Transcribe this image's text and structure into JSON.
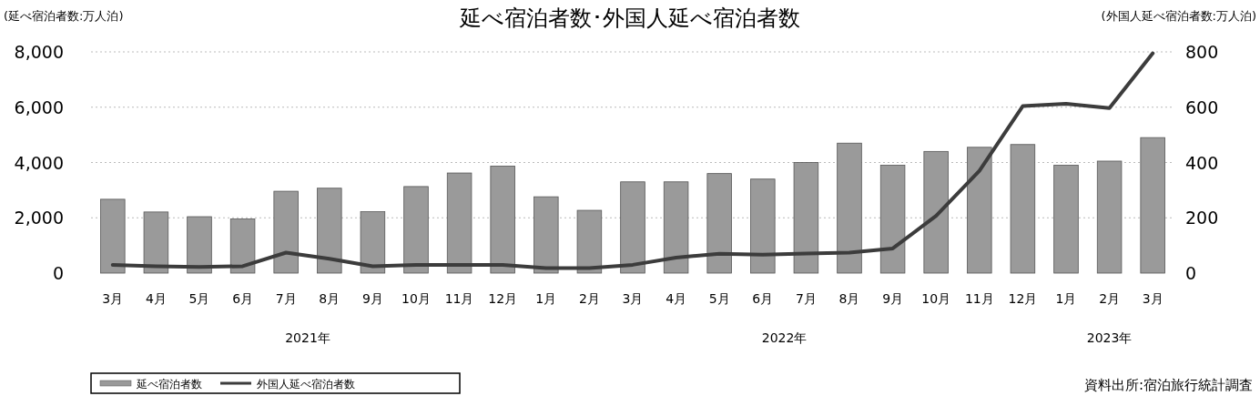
{
  "chart_data": {
    "type": "bar",
    "title": "延べ宿泊者数･外国人延べ宿泊者数",
    "ylabel": "(延べ宿泊者数:万人泊)",
    "y2label": "(外国人延べ宿泊者数:万人泊)",
    "categories": [
      "3月",
      "4月",
      "5月",
      "6月",
      "7月",
      "8月",
      "9月",
      "10月",
      "11月",
      "12月",
      "1月",
      "2月",
      "3月",
      "4月",
      "5月",
      "6月",
      "7月",
      "8月",
      "9月",
      "10月",
      "11月",
      "12月",
      "1月",
      "2月",
      "3月"
    ],
    "series": [
      {
        "name": "延べ宿泊者数",
        "color": "#9a9a9a",
        "values": [
          2670,
          2210,
          2040,
          1960,
          2960,
          3070,
          2220,
          3130,
          3620,
          3870,
          2760,
          2270,
          3300,
          3300,
          3600,
          3400,
          4000,
          4700,
          3900,
          4400,
          4550,
          4650,
          3900,
          4050,
          4900
        ]
      },
      {
        "name": "外国人延べ宿泊者数",
        "type": "line",
        "axis": "y2",
        "color": "#3c3c3c",
        "values": [
          30,
          25,
          22,
          25,
          74,
          52,
          25,
          30,
          30,
          30,
          18,
          18,
          30,
          56,
          70,
          67,
          71,
          74,
          89,
          207,
          370,
          604,
          612,
          597,
          795
        ]
      }
    ],
    "ylim": [
      0,
      8000
    ],
    "yticks": [
      {
        "value": 0,
        "label": "0"
      },
      {
        "value": 2000,
        "label": "2,000"
      },
      {
        "value": 4000,
        "label": "4,000"
      },
      {
        "value": 6000,
        "label": "6,000"
      },
      {
        "value": 8000,
        "label": "8,000"
      }
    ],
    "y2lim": [
      0,
      800
    ],
    "y2ticks": [
      0,
      200,
      400,
      600,
      800
    ],
    "grid": "y",
    "legend": "bottom left",
    "annotations": [
      "2021年",
      "2022年",
      "2023年",
      "資料出所:宿泊旅行統計調査"
    ]
  }
}
